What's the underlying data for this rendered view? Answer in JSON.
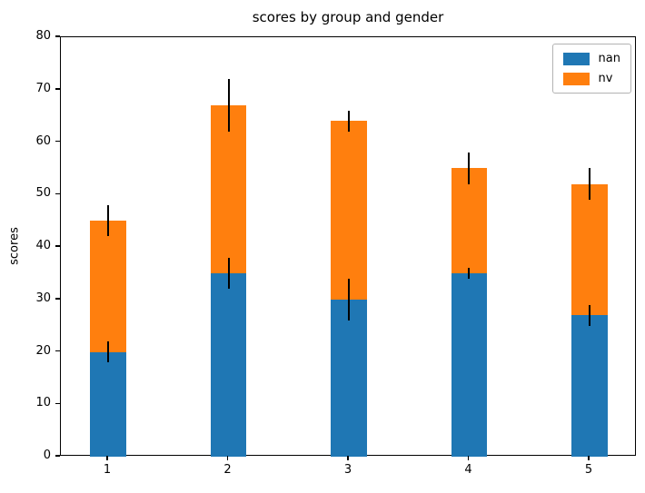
{
  "chart_data": {
    "type": "bar",
    "stacked": true,
    "title": "scores by group and gender",
    "xlabel": "",
    "ylabel": "scores",
    "categories": [
      "1",
      "2",
      "3",
      "4",
      "5"
    ],
    "series": [
      {
        "name": "nan",
        "values": [
          20,
          35,
          30,
          35,
          27
        ],
        "errors": [
          2,
          3,
          4,
          1,
          2
        ],
        "color": "#1f77b4"
      },
      {
        "name": "nv",
        "values": [
          25,
          32,
          34,
          20,
          25
        ],
        "errors": [
          3,
          5,
          2,
          3,
          3
        ],
        "color": "#ff7f0e"
      }
    ],
    "ylim": [
      0,
      80
    ],
    "yticks": [
      0,
      10,
      20,
      30,
      40,
      50,
      60,
      70,
      80
    ],
    "grid": false,
    "legend_position": "upper right",
    "error_bar_color": "#000000",
    "bar_width_data_units": 0.3
  }
}
